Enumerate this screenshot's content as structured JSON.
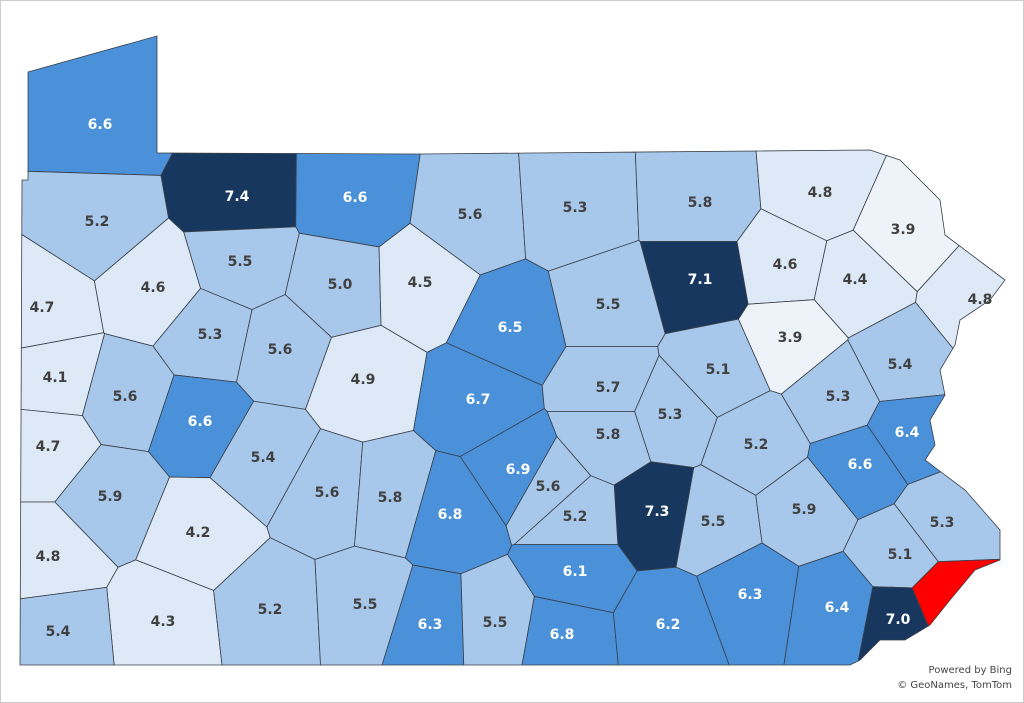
{
  "map": {
    "type": "choropleth",
    "regions": [
      {
        "value": 6.6,
        "color": "#4b91da"
      },
      {
        "value": 7.4,
        "color": "#17375f"
      },
      {
        "value": 6.6,
        "color": "#4b91da"
      },
      {
        "value": 5.6,
        "color": "#a8c8eb"
      },
      {
        "value": 5.3,
        "color": "#a8c8eb"
      },
      {
        "value": 5.8,
        "color": "#a8c8eb"
      },
      {
        "value": 4.8,
        "color": "#dde9f6"
      },
      {
        "value": 3.9,
        "color": "#eef3fa"
      },
      {
        "value": 5.2,
        "color": "#a8c8eb"
      },
      {
        "value": 5.5,
        "color": "#a8c8eb"
      },
      {
        "value": 5,
        "label": "5.0",
        "color": "#a8c8eb"
      },
      {
        "value": 4.5,
        "color": "#dde9f6"
      },
      {
        "value": 6.5,
        "color": "#4b91da"
      },
      {
        "value": 5.5,
        "color": "#a8c8eb"
      },
      {
        "value": 7.1,
        "color": "#17375f"
      },
      {
        "value": 4.6,
        "color": "#dde9f6"
      },
      {
        "value": 4.4,
        "color": "#dde9f6"
      },
      {
        "value": 4.8,
        "color": "#dde9f6"
      },
      {
        "value": 4.7,
        "color": "#dde9f6"
      },
      {
        "value": 4.6,
        "color": "#dde9f6"
      },
      {
        "value": 5.3,
        "color": "#a8c8eb"
      },
      {
        "value": 5.6,
        "color": "#a8c8eb"
      },
      {
        "value": 4.9,
        "color": "#dde9f6"
      },
      {
        "value": 6.7,
        "color": "#4b91da"
      },
      {
        "value": 5.7,
        "color": "#a8c8eb"
      },
      {
        "value": 5.1,
        "color": "#a8c8eb"
      },
      {
        "value": 3.9,
        "color": "#eef3fa"
      },
      {
        "value": 5.4,
        "color": "#a8c8eb"
      },
      {
        "value": 4.1,
        "color": "#dde9f6"
      },
      {
        "value": 5.6,
        "color": "#a8c8eb"
      },
      {
        "value": 6.6,
        "color": "#4b91da"
      },
      {
        "value": 5.8,
        "color": "#a8c8eb"
      },
      {
        "value": 5.3,
        "color": "#a8c8eb"
      },
      {
        "value": 5.3,
        "color": "#a8c8eb"
      },
      {
        "value": 4.7,
        "color": "#dde9f6"
      },
      {
        "value": 5.4,
        "color": "#a8c8eb"
      },
      {
        "value": 6.9,
        "color": "#4b91da"
      },
      {
        "value": 5.2,
        "color": "#a8c8eb"
      },
      {
        "value": 6.4,
        "color": "#4b91da"
      },
      {
        "value": 6.6,
        "color": "#4b91da"
      },
      {
        "value": 5.9,
        "color": "#a8c8eb"
      },
      {
        "value": 5.6,
        "color": "#a8c8eb"
      },
      {
        "value": 5.8,
        "color": "#a8c8eb"
      },
      {
        "value": 6.8,
        "color": "#4b91da"
      },
      {
        "value": 5.6,
        "color": "#a8c8eb"
      },
      {
        "value": 7.3,
        "color": "#17375f"
      },
      {
        "value": 5.2,
        "color": "#a8c8eb"
      },
      {
        "value": 5.5,
        "color": "#a8c8eb"
      },
      {
        "value": 5.9,
        "color": "#a8c8eb"
      },
      {
        "value": 5.3,
        "color": "#a8c8eb"
      },
      {
        "value": 4.2,
        "color": "#dde9f6"
      },
      {
        "value": 4.8,
        "color": "#dde9f6"
      },
      {
        "value": 6.1,
        "color": "#4b91da"
      },
      {
        "value": 5.1,
        "color": "#a8c8eb"
      },
      {
        "value": 6.3,
        "color": "#4b91da"
      },
      {
        "value": 4.3,
        "color": "#dde9f6"
      },
      {
        "value": 5.2,
        "color": "#a8c8eb"
      },
      {
        "value": 5.5,
        "color": "#a8c8eb"
      },
      {
        "value": 6.3,
        "color": "#4b91da"
      },
      {
        "value": 5.5,
        "color": "#a8c8eb"
      },
      {
        "value": 6.8,
        "color": "#4b91da"
      },
      {
        "value": 6.2,
        "color": "#4b91da"
      },
      {
        "value": 6.4,
        "color": "#4b91da"
      },
      {
        "value": 7,
        "label": "7.0",
        "color": "#17375f"
      },
      {
        "value": 5.4,
        "color": "#a8c8eb"
      },
      {
        "value": null,
        "color": "#ff0000"
      }
    ]
  },
  "footer": {
    "line1": "Powered by Bing",
    "line2": "© GeoNames, TomTom"
  }
}
